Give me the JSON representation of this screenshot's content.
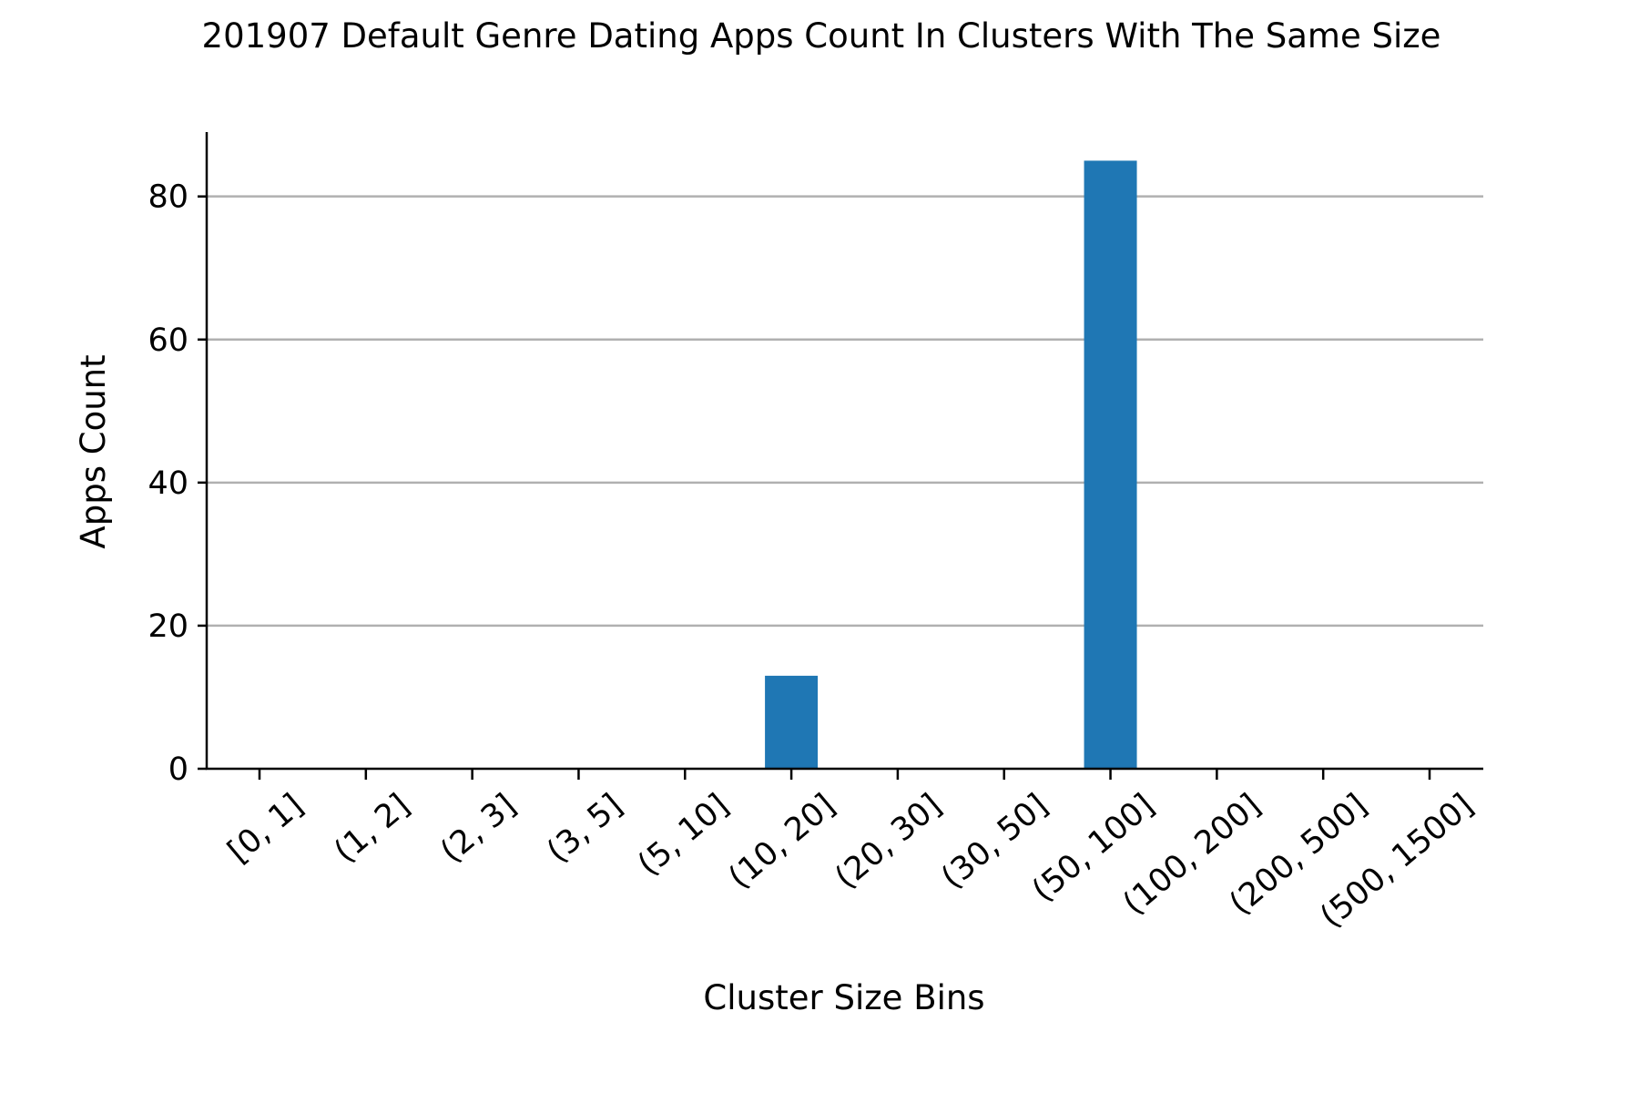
{
  "chart_data": {
    "type": "bar",
    "title": "201907 Default Genre Dating Apps Count In Clusters With The Same Size",
    "xlabel": "Cluster Size Bins",
    "ylabel": "Apps Count",
    "categories": [
      "[0, 1]",
      "(1, 2]",
      "(2, 3]",
      "(3, 5]",
      "(5, 10]",
      "(10, 20]",
      "(20, 30]",
      "(30, 50]",
      "(50, 100]",
      "(100, 200]",
      "(200, 500]",
      "(500, 1500]"
    ],
    "values": [
      0,
      0,
      0,
      0,
      0,
      13,
      0,
      0,
      85,
      0,
      0,
      0
    ],
    "yticks": [
      0,
      20,
      40,
      60,
      80
    ],
    "ylim": [
      0,
      89
    ],
    "grid": "horizontal",
    "bar_color": "#1f77b4",
    "grid_color": "#b0b0b0"
  }
}
